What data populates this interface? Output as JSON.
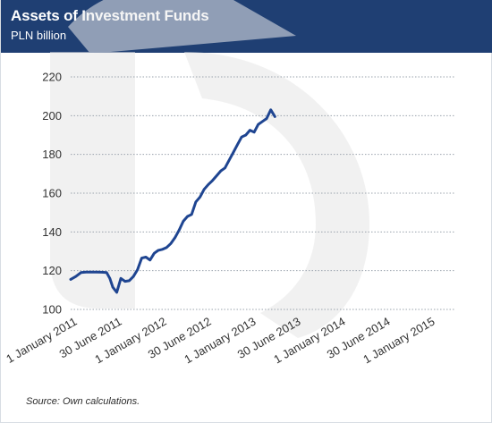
{
  "header": {
    "title": "Assets of Investment Funds",
    "subtitle": "PLN billion"
  },
  "chart_data": {
    "type": "line",
    "title": "Assets of Investment Funds",
    "subtitle": "PLN billion",
    "xlabel": "",
    "ylabel": "",
    "ylim": [
      100,
      220
    ],
    "yticks": [
      100,
      120,
      140,
      160,
      180,
      200,
      220
    ],
    "xticks": [
      "1 January 2011",
      "30 June 2011",
      "1 January 2012",
      "30 June 2012",
      "1 January 2013",
      "30 June 2013",
      "1 January 2014",
      "30 June 2014",
      "1 January 2015"
    ],
    "grid": "horizontal dashed",
    "legend": "none",
    "colors": {
      "line": "#1f4591",
      "header": "#1f3f73",
      "grid": "#9aa3ad",
      "watermark": "#e9e9e9"
    },
    "series": [
      {
        "points": [
          [
            "2011-01-01",
            115.5
          ],
          [
            "2011-01-22",
            117.0
          ],
          [
            "2011-02-12",
            119.0
          ],
          [
            "2011-03-05",
            119.3
          ],
          [
            "2011-03-26",
            119.3
          ],
          [
            "2011-04-16",
            119.3
          ],
          [
            "2011-05-07",
            119.2
          ],
          [
            "2011-05-28",
            119.0
          ],
          [
            "2011-06-10",
            116.0
          ],
          [
            "2011-06-22",
            111.5
          ],
          [
            "2011-07-08",
            108.8
          ],
          [
            "2011-07-25",
            116.0
          ],
          [
            "2011-08-11",
            114.5
          ],
          [
            "2011-08-28",
            114.8
          ],
          [
            "2011-09-14",
            117.0
          ],
          [
            "2011-10-01",
            120.5
          ],
          [
            "2011-10-18",
            126.5
          ],
          [
            "2011-11-04",
            127.0
          ],
          [
            "2011-11-21",
            125.5
          ],
          [
            "2011-12-08",
            129.0
          ],
          [
            "2011-12-25",
            130.5
          ],
          [
            "2012-01-11",
            131.0
          ],
          [
            "2012-01-28",
            132.0
          ],
          [
            "2012-02-14",
            134.0
          ],
          [
            "2012-03-02",
            137.0
          ],
          [
            "2012-03-19",
            141.0
          ],
          [
            "2012-04-05",
            145.5
          ],
          [
            "2012-04-22",
            148.0
          ],
          [
            "2012-05-09",
            149.0
          ],
          [
            "2012-05-26",
            155.5
          ],
          [
            "2012-06-12",
            158.0
          ],
          [
            "2012-06-29",
            162.0
          ],
          [
            "2012-07-16",
            164.5
          ],
          [
            "2012-08-02",
            166.5
          ],
          [
            "2012-08-19",
            169.0
          ],
          [
            "2012-09-05",
            171.5
          ],
          [
            "2012-09-22",
            173.0
          ],
          [
            "2012-10-09",
            177.0
          ],
          [
            "2012-10-26",
            181.0
          ],
          [
            "2012-11-12",
            185.0
          ],
          [
            "2012-11-29",
            189.0
          ],
          [
            "2012-12-16",
            190.0
          ],
          [
            "2013-01-02",
            192.5
          ],
          [
            "2013-01-19",
            191.5
          ],
          [
            "2013-02-05",
            195.5
          ],
          [
            "2013-02-22",
            197.0
          ],
          [
            "2013-03-11",
            198.5
          ],
          [
            "2013-03-28",
            203.0
          ],
          [
            "2013-04-14",
            199.5
          ]
        ]
      }
    ]
  },
  "footer": {
    "source": "Source: Own calculations."
  }
}
